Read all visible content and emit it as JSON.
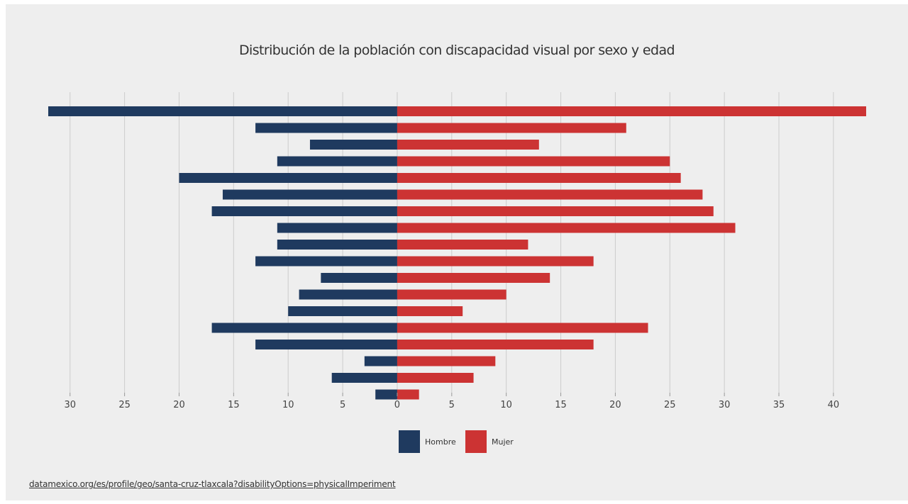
{
  "chart_data": {
    "type": "bar",
    "orientation": "horizontal",
    "layout": "diverging",
    "title": "Distribución de la población con discapacidad visual por sexo y edad",
    "categories": [
      "",
      "",
      "",
      "",
      "",
      "",
      "",
      "",
      "",
      "",
      "",
      "",
      "",
      "",
      "",
      "",
      "",
      ""
    ],
    "series": [
      {
        "name": "Hombre",
        "color": "#1f3a5f",
        "side": "left",
        "values": [
          32,
          13,
          8,
          11,
          20,
          16,
          17,
          11,
          11,
          13,
          7,
          9,
          10,
          17,
          13,
          3,
          6,
          2
        ]
      },
      {
        "name": "Mujer",
        "color": "#cc3333",
        "side": "right",
        "values": [
          43,
          21,
          13,
          25,
          26,
          28,
          29,
          31,
          12,
          18,
          14,
          10,
          6,
          23,
          18,
          9,
          7,
          2
        ]
      }
    ],
    "xlim": [
      -32,
      43
    ],
    "xticks": [
      {
        "value": -30,
        "label": "30"
      },
      {
        "value": -25,
        "label": "25"
      },
      {
        "value": -20,
        "label": "20"
      },
      {
        "value": -15,
        "label": "15"
      },
      {
        "value": -10,
        "label": "10"
      },
      {
        "value": -5,
        "label": "5"
      },
      {
        "value": 0,
        "label": "0"
      },
      {
        "value": 5,
        "label": "5"
      },
      {
        "value": 10,
        "label": "10"
      },
      {
        "value": 15,
        "label": "15"
      },
      {
        "value": 20,
        "label": "20"
      },
      {
        "value": 25,
        "label": "25"
      },
      {
        "value": 30,
        "label": "30"
      },
      {
        "value": 35,
        "label": "35"
      },
      {
        "value": 40,
        "label": "40"
      }
    ],
    "grid": true,
    "legend_position": "bottom-center",
    "background": "#eeeeee",
    "gridline_color": "#cccccc"
  },
  "source": {
    "link_text": "datamexico.org/es/profile/geo/santa-cruz-tlaxcala?disabilityOptions=physicalImperiment"
  }
}
